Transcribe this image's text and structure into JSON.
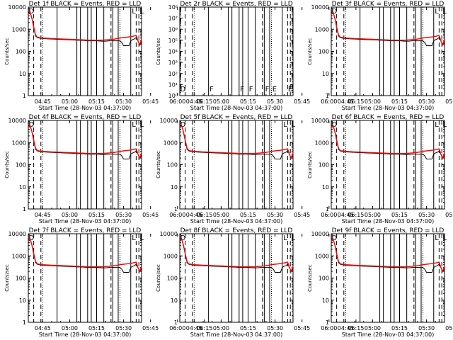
{
  "page": {
    "background": "#ffffff"
  },
  "chart_data": {
    "type": "line",
    "x_time_ticks": [
      "04:45",
      "05:00",
      "05:15",
      "05:30",
      "05:45",
      "06:00",
      "06:15"
    ],
    "x_range_minutes": [
      37,
      100
    ],
    "xlabel": "Start Time (28-Nov-03 04:37:00)",
    "ylabel": "Counts/sec",
    "yscale": "log",
    "y_tick_labels_full": [
      "1",
      "10",
      "100",
      "1000",
      "10000"
    ],
    "y_tick_labels_det2": [
      "10⁰",
      "10¹",
      "10²",
      "10³",
      "10⁴",
      "10⁵",
      "10⁶",
      "10⁷",
      "10⁸"
    ],
    "series_colors": {
      "events": "#000000",
      "lld": "#ff0000"
    },
    "legend_text": "BLACK = Events, RED = LLD",
    "marker_letters": {
      "open": "D",
      "flag": "F",
      "end": "E",
      "left": "L"
    },
    "solid_vlines_minutes": [
      53,
      64,
      66,
      70,
      72,
      75,
      79,
      84,
      87,
      94
    ],
    "dashed_vlines_minutes": [
      40,
      44,
      83,
      97,
      98.5
    ],
    "dotted_vlines_minutes": [
      45,
      88,
      101
    ],
    "events_series": {
      "x_minutes": [
        37,
        38,
        39,
        40,
        41,
        42,
        43,
        44,
        45,
        47,
        50,
        53,
        56,
        60,
        64,
        68,
        70,
        72,
        75,
        78,
        80,
        82,
        84,
        86,
        88,
        89,
        90,
        91,
        92,
        93,
        94,
        95,
        96,
        97,
        98,
        99,
        100
      ],
      "y": [
        5500,
        6000,
        3000,
        1200,
        500,
        420,
        400,
        390,
        380,
        370,
        360,
        350,
        340,
        330,
        320,
        310,
        300,
        300,
        300,
        290,
        290,
        300,
        300,
        300,
        300,
        250,
        180,
        180,
        180,
        180,
        300,
        340,
        360,
        420,
        300,
        200,
        250
      ]
    },
    "lld_series": {
      "x_minutes": [
        37,
        38,
        39,
        40,
        41,
        42,
        43,
        44,
        45,
        47,
        50,
        53,
        56,
        60,
        64,
        68,
        70,
        72,
        75,
        78,
        80,
        82,
        84,
        86,
        88,
        90,
        92,
        94,
        96,
        97,
        98,
        99,
        100
      ],
      "y": [
        5000,
        5800,
        3200,
        1300,
        560,
        440,
        420,
        410,
        400,
        390,
        380,
        370,
        360,
        350,
        340,
        330,
        320,
        320,
        320,
        320,
        330,
        340,
        350,
        370,
        400,
        420,
        440,
        460,
        500,
        520,
        300,
        200,
        350
      ]
    },
    "panels": [
      {
        "title": "Det 1",
        "seg": "f",
        "mode": "full"
      },
      {
        "title": "Det 2",
        "seg": "r",
        "mode": "empty"
      },
      {
        "title": "Det 3",
        "seg": "f",
        "mode": "full"
      },
      {
        "title": "Det 4",
        "seg": "f",
        "mode": "full"
      },
      {
        "title": "Det 5",
        "seg": "f",
        "mode": "full"
      },
      {
        "title": "Det 6",
        "seg": "f",
        "mode": "full"
      },
      {
        "title": "Det 7",
        "seg": "f",
        "mode": "full"
      },
      {
        "title": "Det 8",
        "seg": "f",
        "mode": "full"
      },
      {
        "title": "Det 9",
        "seg": "f",
        "mode": "full"
      }
    ]
  }
}
